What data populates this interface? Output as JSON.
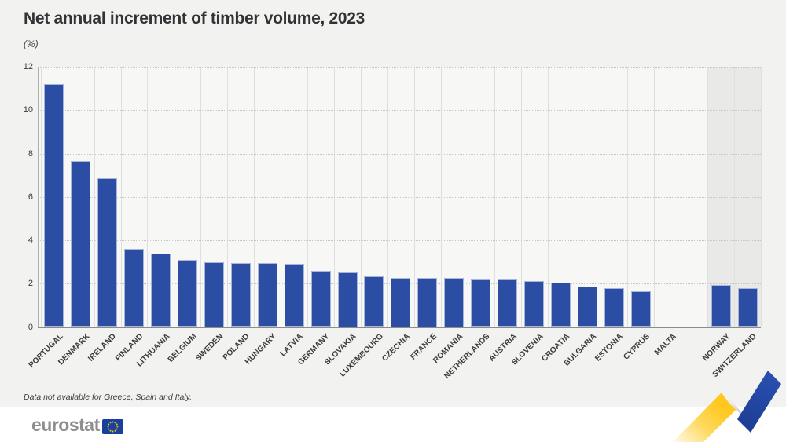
{
  "page": {
    "title": "Net annual increment of timber volume, 2023",
    "unit_label": "(%)",
    "footnote": "Data not available for Greece, Spain and Italy.",
    "logo_text": "eurostat"
  },
  "colors": {
    "bar_blue": "#2B4DA3",
    "highlight_band_gray": "#E9E9E7",
    "page_background": "#F2F2F0",
    "accent_yellow": "#FFC81E",
    "accent_blue": "#2448A6"
  },
  "chart_data": {
    "type": "bar",
    "title": "Net annual increment of timber volume, 2023",
    "ylabel": "(%)",
    "xlabel": "",
    "ylim": [
      0,
      12
    ],
    "yticks": [
      0,
      2,
      4,
      6,
      8,
      10,
      12
    ],
    "grid": true,
    "legend": "none",
    "layout_note": "EU countries sorted descending; Malta shown with no bar; Norway and Switzerland separated on gray highlight band",
    "categories": [
      "PORTUGAL",
      "DENMARK",
      "IRELAND",
      "FINLAND",
      "LITHUANIA",
      "BELGIUM",
      "SWEDEN",
      "POLAND",
      "HUNGARY",
      "LATVIA",
      "GERMANY",
      "SLOVAKIA",
      "LUXEMBOURG",
      "CZECHIA",
      "FRANCE",
      "ROMANIA",
      "NETHERLANDS",
      "AUSTRIA",
      "SLOVENIA",
      "CROATIA",
      "BULGARIA",
      "ESTONIA",
      "CYPRUS",
      "MALTA",
      "",
      "NORWAY",
      "SWITZERLAND"
    ],
    "values": [
      11.2,
      7.65,
      6.85,
      3.6,
      3.4,
      3.1,
      3.0,
      2.95,
      2.95,
      2.9,
      2.6,
      2.5,
      2.35,
      2.25,
      2.25,
      2.25,
      2.2,
      2.2,
      2.1,
      2.05,
      1.85,
      1.8,
      1.65,
      0,
      null,
      1.95,
      1.8
    ],
    "non_eu_highlighted": [
      "NORWAY",
      "SWITZERLAND"
    ]
  }
}
